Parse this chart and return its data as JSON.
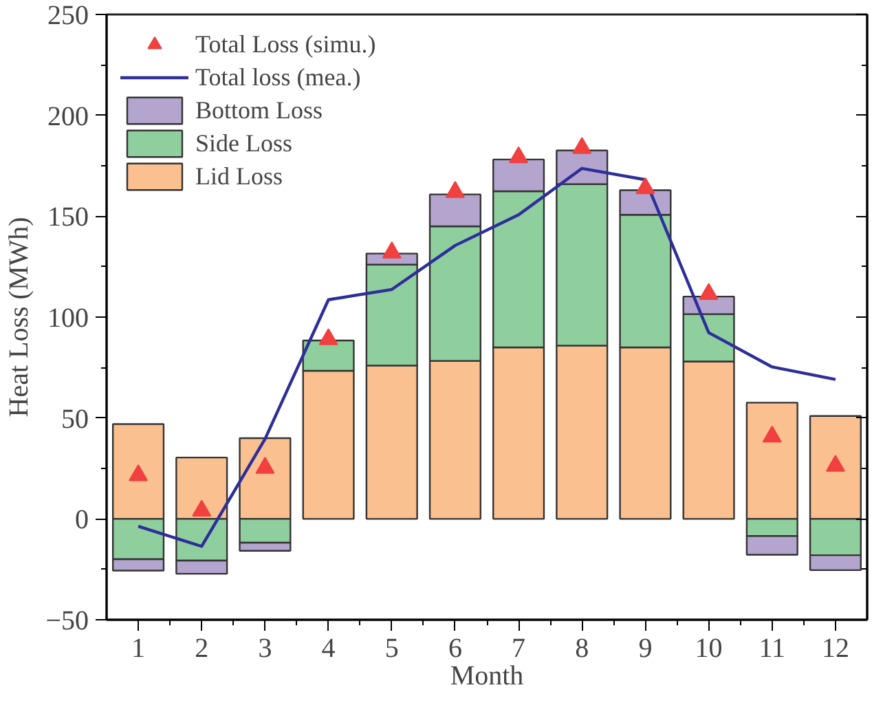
{
  "chart_data": {
    "type": "bar",
    "xlabel": "Month",
    "ylabel": "Heat Loss (MWh)",
    "x": [
      1,
      2,
      3,
      4,
      5,
      6,
      7,
      8,
      9,
      10,
      11,
      12
    ],
    "xlim": [
      0.5,
      12.5
    ],
    "xticks": [
      1,
      2,
      3,
      4,
      5,
      6,
      7,
      8,
      9,
      10,
      11,
      12
    ],
    "stacked": true,
    "ylim": [
      -50,
      250
    ],
    "yticks": [
      -50,
      0,
      50,
      100,
      150,
      200,
      250
    ],
    "grid": false,
    "legend": "top left",
    "series": [
      {
        "name": "Lid Loss",
        "color": "#fbc08f",
        "values": [
          47,
          30.4,
          40,
          73.4,
          76,
          78.3,
          85,
          85.9,
          85,
          78,
          57.6,
          51
        ]
      },
      {
        "name": "Side Loss",
        "color": "#8fcf9e",
        "values": [
          -20,
          -20.7,
          -11.8,
          15,
          50,
          66.7,
          77.4,
          80,
          65.7,
          23.5,
          -8.5,
          -18
        ]
      },
      {
        "name": "Bottom Loss",
        "color": "#b3a5cd",
        "values": [
          -5.6,
          -6.5,
          -4,
          null,
          5.5,
          15.8,
          15.7,
          16.7,
          12.2,
          8.7,
          -9.3,
          -7.4
        ]
      },
      {
        "name": "Total loss (mea.)",
        "type": "line",
        "color": "#2e2e9a",
        "values": [
          -3.7,
          -13.6,
          39.6,
          108.6,
          113.7,
          135.5,
          150.7,
          173.7,
          168.1,
          92.3,
          75.3,
          69.1
        ]
      },
      {
        "name": "Total Loss (simu.)",
        "type": "scatter",
        "marker": "triangle",
        "color": "#f04040",
        "values": [
          21.6,
          4,
          25.3,
          89,
          132,
          162,
          179.2,
          183.8,
          163.8,
          111.4,
          40.8,
          26.3
        ]
      }
    ]
  }
}
